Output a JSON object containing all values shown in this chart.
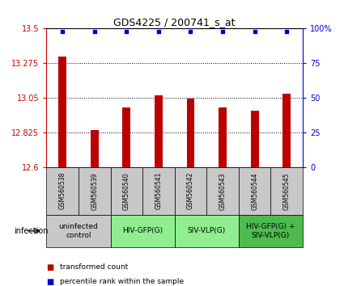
{
  "title": "GDS4225 / 200741_s_at",
  "samples": [
    "GSM560538",
    "GSM560539",
    "GSM560540",
    "GSM560541",
    "GSM560542",
    "GSM560543",
    "GSM560544",
    "GSM560545"
  ],
  "red_values": [
    13.32,
    12.84,
    12.99,
    13.065,
    13.045,
    12.99,
    12.965,
    13.075
  ],
  "blue_values": [
    98,
    98,
    98,
    98,
    98,
    98,
    98,
    98
  ],
  "ylim_left": [
    12.6,
    13.5
  ],
  "ylim_right": [
    0,
    100
  ],
  "yticks_left": [
    12.6,
    12.825,
    13.05,
    13.275,
    13.5
  ],
  "yticks_right": [
    0,
    25,
    50,
    75,
    100
  ],
  "ytick_labels_left": [
    "12.6",
    "12.825",
    "13.05",
    "13.275",
    "13.5"
  ],
  "ytick_labels_right": [
    "0",
    "25",
    "50",
    "75",
    "100%"
  ],
  "groups": [
    {
      "label": "uninfected\ncontrol",
      "start": 0,
      "end": 2,
      "color": "#c8c8c8"
    },
    {
      "label": "HIV-GFP(G)",
      "start": 2,
      "end": 4,
      "color": "#90ee90"
    },
    {
      "label": "SIV-VLP(G)",
      "start": 4,
      "end": 6,
      "color": "#90ee90"
    },
    {
      "label": "HIV-GFP(G) +\nSIV-VLP(G)",
      "start": 6,
      "end": 8,
      "color": "#4dbb4d"
    }
  ],
  "bar_color": "#bb0000",
  "dot_color": "#0000cc",
  "bar_width": 0.25,
  "infection_label": "infection",
  "legend_red": "transformed count",
  "legend_blue": "percentile rank within the sample",
  "background_color": "#ffffff",
  "sample_bg_color": "#c8c8c8"
}
